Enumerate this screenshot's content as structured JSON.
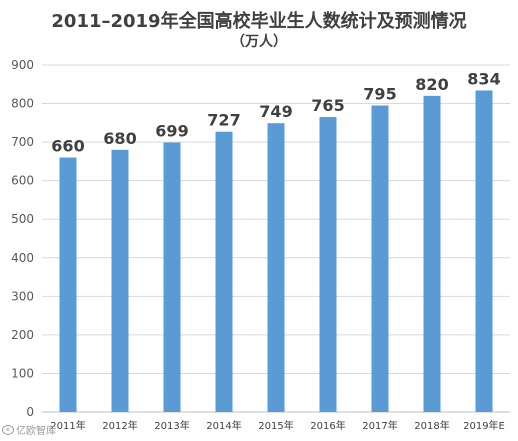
{
  "chart_data": {
    "type": "bar",
    "title": "2011–2019年全国高校毕业生人数统计及预测情况",
    "subtitle": "（万人）",
    "categories": [
      "2011年",
      "2012年",
      "2013年",
      "2014年",
      "2015年",
      "2016年",
      "2017年",
      "2018年",
      "2019年E"
    ],
    "values": [
      660,
      680,
      699,
      727,
      749,
      765,
      795,
      820,
      834
    ],
    "data_labels": [
      "660",
      "680",
      "699",
      "727",
      "749",
      "765",
      "795",
      "820",
      "834"
    ],
    "ylim": [
      0,
      900
    ],
    "yticks": [
      "0",
      "100",
      "200",
      "300",
      "400",
      "500",
      "600",
      "700",
      "800",
      "900"
    ],
    "grid": true,
    "xlabel": "",
    "ylabel": "",
    "bar_color": "#5b9bd5",
    "grid_color": "#d9d9d9",
    "text_color": "#404040"
  },
  "watermark": {
    "text": "亿欧智库",
    "icon": "weibo-logo-icon"
  }
}
